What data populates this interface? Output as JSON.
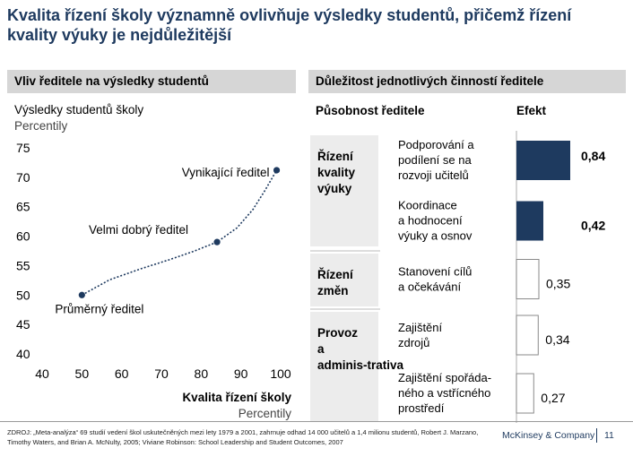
{
  "title": "Kvalita řízení školy významně ovlivňuje výsledky studentů, přičemž řízení kvality výuky je nejdůležitější",
  "left_panel": {
    "header": "Vliv ředitele na výsledky studentů",
    "y_title": "Výsledky studentů školy",
    "y_subtitle": "Percentily",
    "x_title": "Kvalita řízení školy",
    "x_subtitle": "Percentily"
  },
  "right_panel": {
    "header": "Důležitost jednotlivých činností ředitele",
    "col_scope": "Působnost ředitele",
    "col_effect": "Efekt"
  },
  "footer": {
    "source": "ZDROJ: „Meta-analýza“ 69 studií vedení škol uskutečněných mezi lety 1979 a 2001, zahrnuje odhad 14 000 učitelů a 1,4 milionu studentů, Robert J. Marzano, Timothy Waters, and Brian A. McNulty, 2005; Viviane Robinson: School Leadership and Student Outcomes, 2007",
    "brand": "McKinsey & Company",
    "page": "11"
  },
  "chart_data": [
    {
      "type": "line",
      "title": "",
      "xlabel": "Kvalita řízení školy Percentily",
      "ylabel": "Výsledky studentů školy Percentily",
      "xlim": [
        40,
        100
      ],
      "ylim": [
        40,
        75
      ],
      "x_ticks": [
        40,
        50,
        60,
        70,
        80,
        90,
        100
      ],
      "y_ticks": [
        40,
        45,
        50,
        55,
        60,
        65,
        70,
        75
      ],
      "grid": false,
      "series": [
        {
          "x": [
            50,
            57,
            65,
            72,
            78,
            84,
            89,
            93,
            96,
            99
          ],
          "y": [
            50,
            52.6,
            54.5,
            56,
            57.4,
            59,
            61.4,
            64.5,
            67.7,
            71.2
          ]
        }
      ],
      "marked_points": [
        {
          "label": "Průměrný ředitel",
          "x": 50,
          "y": 50
        },
        {
          "label": "Velmi dobrý ředitel",
          "x": 84,
          "y": 59
        },
        {
          "label": "Vynikající ředitel",
          "x": 99,
          "y": 71.2
        }
      ]
    },
    {
      "type": "bar",
      "orientation": "horizontal",
      "groups": [
        {
          "name": "Řízení kvality výuky",
          "items": [
            0,
            1
          ]
        },
        {
          "name": "Řízení změn",
          "items": [
            2
          ]
        },
        {
          "name": "Provoz a adminis-trativa",
          "items": [
            3,
            4
          ]
        }
      ],
      "categories": [
        "Podporování a podílení se na rozvoji učitelů",
        "Koordinace a hodnocení výuky a osnov",
        "Stanovení cílů a očekávání",
        "Zajištění zdrojů",
        "Zajištění spořáda-ného a vstřícného prostředí"
      ],
      "values": [
        0.84,
        0.42,
        0.35,
        0.34,
        0.27
      ],
      "value_labels": [
        "0,84",
        "0,42",
        "0,35",
        "0,34",
        "0,27"
      ],
      "emphasis": [
        true,
        true,
        false,
        false,
        false
      ],
      "colors": {
        "filled": "#1e3a5f",
        "outline": "#8a8a8a"
      }
    }
  ]
}
